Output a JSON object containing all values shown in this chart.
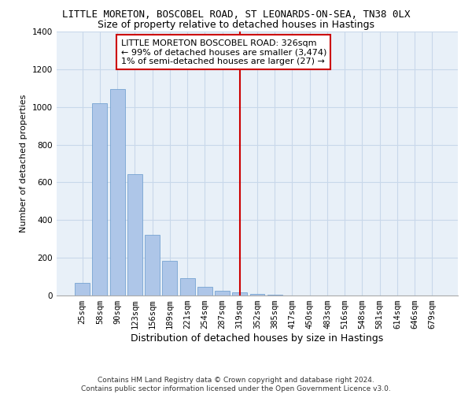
{
  "title": "LITTLE MORETON, BOSCOBEL ROAD, ST LEONARDS-ON-SEA, TN38 0LX",
  "subtitle": "Size of property relative to detached houses in Hastings",
  "xlabel": "Distribution of detached houses by size in Hastings",
  "ylabel": "Number of detached properties",
  "categories": [
    "25sqm",
    "58sqm",
    "90sqm",
    "123sqm",
    "156sqm",
    "189sqm",
    "221sqm",
    "254sqm",
    "287sqm",
    "319sqm",
    "352sqm",
    "385sqm",
    "417sqm",
    "450sqm",
    "483sqm",
    "516sqm",
    "548sqm",
    "581sqm",
    "614sqm",
    "646sqm",
    "679sqm"
  ],
  "values": [
    65,
    1020,
    1095,
    645,
    320,
    185,
    90,
    45,
    25,
    15,
    10,
    5,
    0,
    0,
    0,
    0,
    0,
    0,
    0,
    0,
    0
  ],
  "bar_color": "#aec6e8",
  "bar_edge_color": "#6699cc",
  "vline_x": 9.0,
  "vline_color": "#cc0000",
  "annotation_text": "LITTLE MORETON BOSCOBEL ROAD: 326sqm\n← 99% of detached houses are smaller (3,474)\n1% of semi-detached houses are larger (27) →",
  "annotation_box_color": "#ffffff",
  "annotation_box_edge": "#cc0000",
  "ylim": [
    0,
    1400
  ],
  "yticks": [
    0,
    200,
    400,
    600,
    800,
    1000,
    1200,
    1400
  ],
  "grid_color": "#c8d8ea",
  "background_color": "#e8f0f8",
  "footer_text": "Contains HM Land Registry data © Crown copyright and database right 2024.\nContains public sector information licensed under the Open Government Licence v3.0.",
  "title_fontsize": 9,
  "subtitle_fontsize": 9,
  "xlabel_fontsize": 9,
  "ylabel_fontsize": 8,
  "tick_fontsize": 7.5,
  "annotation_fontsize": 8
}
